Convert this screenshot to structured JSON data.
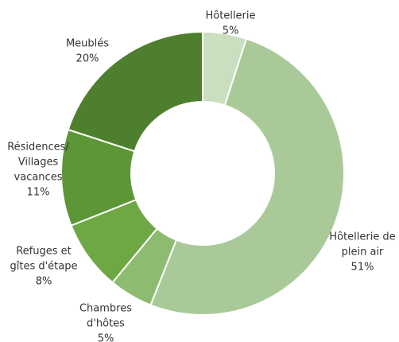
{
  "chart_data": {
    "type": "donut",
    "categories": [
      [
        "Hôtellerie"
      ],
      [
        "Hôtellerie de",
        "plein air"
      ],
      [
        "Chambres",
        "d'hôtes"
      ],
      [
        "Refuges et",
        "gîtes d'étape"
      ],
      [
        "Résidences/",
        "Villages",
        "vacances"
      ],
      [
        "Meublés"
      ]
    ],
    "values": [
      5,
      51,
      5,
      8,
      11,
      20
    ],
    "value_labels": [
      "5%",
      "51%",
      "5%",
      "8%",
      "11%",
      "20%"
    ],
    "colors": [
      "#c9dfc0",
      "#a9ca98",
      "#8dbb70",
      "#6ea845",
      "#5c9637",
      "#4e7f2e"
    ]
  }
}
